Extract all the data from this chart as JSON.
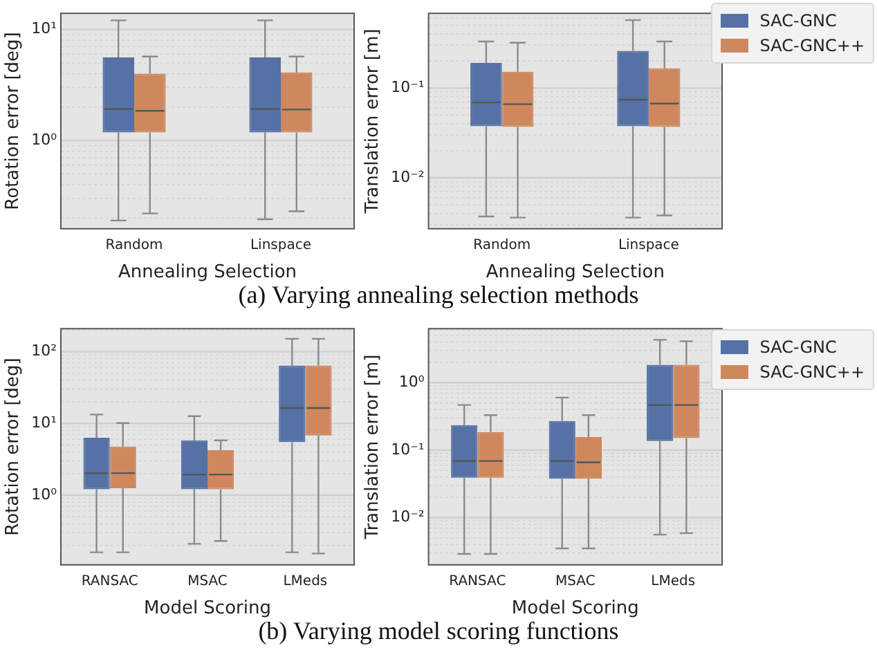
{
  "chart_data": [
    {
      "type": "box",
      "categories": [
        "Random",
        "Linspace"
      ],
      "xlabel": "Annealing Selection",
      "ylabel": "Rotation error [deg]",
      "log": true,
      "ylim": [
        0.16,
        14
      ],
      "yticks": [
        {
          "value": 0.2,
          "label": null
        },
        {
          "value": 0.3,
          "label": null
        },
        {
          "value": 0.4,
          "label": null
        },
        {
          "value": 0.5,
          "label": null
        },
        {
          "value": 0.6,
          "label": null
        },
        {
          "value": 0.7,
          "label": null
        },
        {
          "value": 0.8,
          "label": null
        },
        {
          "value": 0.9,
          "label": null
        },
        {
          "value": 1,
          "label": "10⁰"
        },
        {
          "value": 2,
          "label": null
        },
        {
          "value": 3,
          "label": null
        },
        {
          "value": 4,
          "label": null
        },
        {
          "value": 5,
          "label": null
        },
        {
          "value": 6,
          "label": null
        },
        {
          "value": 7,
          "label": null
        },
        {
          "value": 8,
          "label": null
        },
        {
          "value": 9,
          "label": null
        },
        {
          "value": 10,
          "label": "10¹"
        }
      ],
      "grid": true,
      "legend": false,
      "annotations": [
        "(a) Varying annealing selection methods"
      ],
      "series": [
        {
          "color": "#5571a5",
          "boxes": [
            {
              "low": 0.19,
              "q1": 1.18,
              "median": 1.92,
              "q3": 5.6,
              "high": 12.1
            },
            {
              "low": 0.195,
              "q1": 1.18,
              "median": 1.92,
              "q3": 5.6,
              "high": 12.1
            }
          ]
        },
        {
          "color": "#cf875e",
          "boxes": [
            {
              "low": 0.22,
              "q1": 1.18,
              "median": 1.85,
              "q3": 4.0,
              "high": 5.7
            },
            {
              "low": 0.23,
              "q1": 1.18,
              "median": 1.9,
              "q3": 4.1,
              "high": 5.7
            }
          ]
        }
      ]
    },
    {
      "type": "box",
      "categories": [
        "Random",
        "Linspace"
      ],
      "xlabel": "Annealing Selection",
      "ylabel": "Translation error [m]",
      "log": true,
      "ylim": [
        0.0027,
        0.68
      ],
      "yticks": [
        {
          "value": 0.003,
          "label": null
        },
        {
          "value": 0.004,
          "label": null
        },
        {
          "value": 0.005,
          "label": null
        },
        {
          "value": 0.006,
          "label": null
        },
        {
          "value": 0.007,
          "label": null
        },
        {
          "value": 0.008,
          "label": null
        },
        {
          "value": 0.009,
          "label": null
        },
        {
          "value": 0.01,
          "label": "10⁻²"
        },
        {
          "value": 0.02,
          "label": null
        },
        {
          "value": 0.03,
          "label": null
        },
        {
          "value": 0.04,
          "label": null
        },
        {
          "value": 0.05,
          "label": null
        },
        {
          "value": 0.06,
          "label": null
        },
        {
          "value": 0.07,
          "label": null
        },
        {
          "value": 0.08,
          "label": null
        },
        {
          "value": 0.09,
          "label": null
        },
        {
          "value": 0.1,
          "label": "10⁻¹"
        },
        {
          "value": 0.2,
          "label": null
        },
        {
          "value": 0.3,
          "label": null
        },
        {
          "value": 0.4,
          "label": null
        },
        {
          "value": 0.5,
          "label": null
        },
        {
          "value": 0.6,
          "label": null
        }
      ],
      "grid": true,
      "legend": "right",
      "series": [
        {
          "name": "SAC-GNC",
          "color": "#5571a5",
          "boxes": [
            {
              "low": 0.0037,
              "q1": 0.0375,
              "median": 0.069,
              "q3": 0.19,
              "high": 0.33
            },
            {
              "low": 0.0036,
              "q1": 0.0375,
              "median": 0.074,
              "q3": 0.26,
              "high": 0.57
            }
          ]
        },
        {
          "name": "SAC-GNC++",
          "color": "#cf875e",
          "boxes": [
            {
              "low": 0.0036,
              "q1": 0.0368,
              "median": 0.066,
              "q3": 0.152,
              "high": 0.32
            },
            {
              "low": 0.0038,
              "q1": 0.0368,
              "median": 0.067,
              "q3": 0.166,
              "high": 0.33
            }
          ]
        }
      ]
    },
    {
      "type": "box",
      "categories": [
        "RANSAC",
        "MSAC",
        "LMeds"
      ],
      "xlabel": "Model Scoring",
      "ylabel": "Rotation error [deg]",
      "log": true,
      "ylim": [
        0.107,
        209
      ],
      "yticks": [
        {
          "value": 0.2,
          "label": null
        },
        {
          "value": 0.3,
          "label": null
        },
        {
          "value": 0.4,
          "label": null
        },
        {
          "value": 0.5,
          "label": null
        },
        {
          "value": 0.6,
          "label": null
        },
        {
          "value": 0.7,
          "label": null
        },
        {
          "value": 0.8,
          "label": null
        },
        {
          "value": 0.9,
          "label": null
        },
        {
          "value": 1,
          "label": "10⁰"
        },
        {
          "value": 2,
          "label": null
        },
        {
          "value": 3,
          "label": null
        },
        {
          "value": 4,
          "label": null
        },
        {
          "value": 5,
          "label": null
        },
        {
          "value": 6,
          "label": null
        },
        {
          "value": 7,
          "label": null
        },
        {
          "value": 8,
          "label": null
        },
        {
          "value": 9,
          "label": null
        },
        {
          "value": 10,
          "label": "10¹"
        },
        {
          "value": 20,
          "label": null
        },
        {
          "value": 30,
          "label": null
        },
        {
          "value": 40,
          "label": null
        },
        {
          "value": 50,
          "label": null
        },
        {
          "value": 60,
          "label": null
        },
        {
          "value": 70,
          "label": null
        },
        {
          "value": 80,
          "label": null
        },
        {
          "value": 90,
          "label": null
        },
        {
          "value": 100,
          "label": "10²"
        },
        {
          "value": 200,
          "label": null
        }
      ],
      "grid": true,
      "legend": false,
      "annotations": [
        "(b) Varying model scoring functions"
      ],
      "series": [
        {
          "color": "#5571a5",
          "boxes": [
            {
              "low": 0.16,
              "q1": 1.21,
              "median": 2.03,
              "q3": 6.3,
              "high": 13.3
            },
            {
              "low": 0.21,
              "q1": 1.21,
              "median": 1.94,
              "q3": 5.8,
              "high": 12.6
            },
            {
              "low": 0.16,
              "q1": 5.5,
              "median": 16.4,
              "q3": 64,
              "high": 151
            }
          ]
        },
        {
          "color": "#cf875e",
          "boxes": [
            {
              "low": 0.16,
              "q1": 1.25,
              "median": 2.03,
              "q3": 4.75,
              "high": 10.1
            },
            {
              "low": 0.23,
              "q1": 1.21,
              "median": 1.94,
              "q3": 4.23,
              "high": 5.8
            },
            {
              "low": 0.154,
              "q1": 6.8,
              "median": 16.4,
              "q3": 64,
              "high": 151
            }
          ]
        }
      ]
    },
    {
      "type": "box",
      "categories": [
        "RANSAC",
        "MSAC",
        "LMeds"
      ],
      "xlabel": "Model Scoring",
      "ylabel": "Translation error [m]",
      "log": true,
      "ylim": [
        0.002,
        6.3
      ],
      "yticks": [
        {
          "value": 0.002,
          "label": null
        },
        {
          "value": 0.003,
          "label": null
        },
        {
          "value": 0.004,
          "label": null
        },
        {
          "value": 0.005,
          "label": null
        },
        {
          "value": 0.006,
          "label": null
        },
        {
          "value": 0.007,
          "label": null
        },
        {
          "value": 0.008,
          "label": null
        },
        {
          "value": 0.009,
          "label": null
        },
        {
          "value": 0.01,
          "label": "10⁻²"
        },
        {
          "value": 0.02,
          "label": null
        },
        {
          "value": 0.03,
          "label": null
        },
        {
          "value": 0.04,
          "label": null
        },
        {
          "value": 0.05,
          "label": null
        },
        {
          "value": 0.06,
          "label": null
        },
        {
          "value": 0.07,
          "label": null
        },
        {
          "value": 0.08,
          "label": null
        },
        {
          "value": 0.09,
          "label": null
        },
        {
          "value": 0.1,
          "label": "10⁻¹"
        },
        {
          "value": 0.2,
          "label": null
        },
        {
          "value": 0.3,
          "label": null
        },
        {
          "value": 0.4,
          "label": null
        },
        {
          "value": 0.5,
          "label": null
        },
        {
          "value": 0.6,
          "label": null
        },
        {
          "value": 0.7,
          "label": null
        },
        {
          "value": 0.8,
          "label": null
        },
        {
          "value": 0.9,
          "label": null
        },
        {
          "value": 1,
          "label": "10⁰"
        },
        {
          "value": 2,
          "label": null
        },
        {
          "value": 3,
          "label": null
        },
        {
          "value": 4,
          "label": null
        },
        {
          "value": 5,
          "label": null
        },
        {
          "value": 6,
          "label": null
        }
      ],
      "grid": true,
      "legend": "right",
      "series": [
        {
          "name": "SAC-GNC",
          "color": "#5571a5",
          "boxes": [
            {
              "low": 0.0029,
              "q1": 0.039,
              "median": 0.069,
              "q3": 0.234,
              "high": 0.466
            },
            {
              "low": 0.0035,
              "q1": 0.0377,
              "median": 0.069,
              "q3": 0.27,
              "high": 0.6
            },
            {
              "low": 0.0056,
              "q1": 0.136,
              "median": 0.466,
              "q3": 1.84,
              "high": 4.3
            }
          ]
        },
        {
          "name": "SAC-GNC++",
          "color": "#cf875e",
          "boxes": [
            {
              "low": 0.0029,
              "q1": 0.039,
              "median": 0.069,
              "q3": 0.185,
              "high": 0.33
            },
            {
              "low": 0.0035,
              "q1": 0.0377,
              "median": 0.066,
              "q3": 0.156,
              "high": 0.33
            },
            {
              "low": 0.0059,
              "q1": 0.151,
              "median": 0.466,
              "q3": 1.84,
              "high": 4.1
            }
          ]
        }
      ]
    }
  ]
}
